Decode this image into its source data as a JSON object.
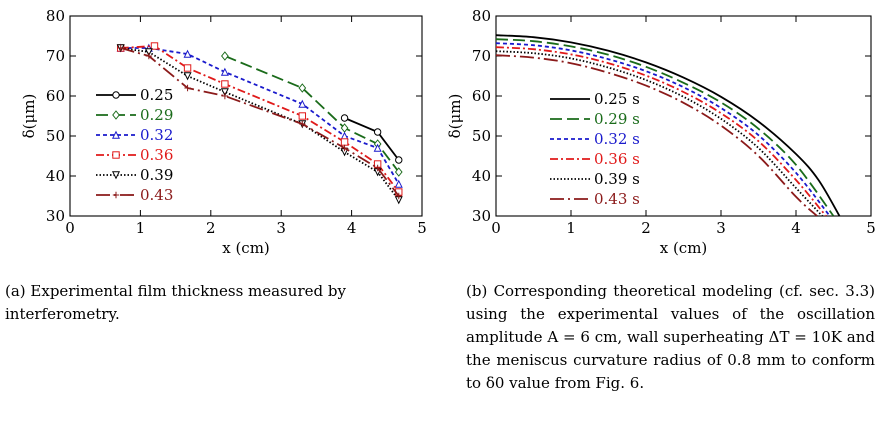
{
  "panel_a": {
    "caption": "(a) Experimental film thickness measured by interferometry.",
    "legend_labels": [
      "0.25",
      "0.29",
      "0.32",
      "0.36",
      "0.39",
      "0.43"
    ]
  },
  "panel_b": {
    "caption": "(b) Corresponding theoretical modeling (cf. sec. 3.3) using the experimental values of the oscillation amplitude A = 6 cm, wall superheating ΔT = 10K and the meniscus curvature radius of 0.8 mm to conform to δ0 value from Fig. 6.",
    "legend_labels": [
      "0.25 s",
      "0.29 s",
      "0.32 s",
      "0.36 s",
      "0.39 s",
      "0.43 s"
    ]
  },
  "colors": {
    "s025": "#000000",
    "s029": "#1a6b1a",
    "s032": "#1a1acc",
    "s036": "#e01a1a",
    "s039": "#000000",
    "s043": "#8b1a1a"
  },
  "chart_data": [
    {
      "type": "line",
      "xlabel": "x (cm)",
      "ylabel": "δ(μm)",
      "xlim": [
        0,
        5
      ],
      "ylim": [
        30,
        80
      ],
      "xticks": [
        "0",
        "1",
        "2",
        "3",
        "4",
        "5"
      ],
      "yticks": [
        "30",
        "40",
        "50",
        "60",
        "70",
        "80"
      ],
      "grid": false,
      "legend_position": "left",
      "series": [
        {
          "name": "0.25",
          "marker": "circle",
          "dash": "solid",
          "color_key": "s025",
          "x": [
            3.9,
            4.37,
            4.67
          ],
          "y": [
            54.5,
            51,
            44
          ]
        },
        {
          "name": "0.29",
          "marker": "diamond",
          "dash": "longdash",
          "color_key": "s029",
          "x": [
            2.2,
            3.3,
            3.9,
            4.37,
            4.67
          ],
          "y": [
            70,
            62,
            52,
            48,
            41
          ]
        },
        {
          "name": "0.32",
          "marker": "triangle",
          "dash": "shortdash",
          "color_key": "s032",
          "x": [
            0.72,
            1.12,
            1.67,
            2.2,
            3.3,
            3.9,
            4.37,
            4.67
          ],
          "y": [
            72,
            72,
            70.5,
            66,
            58,
            50,
            47,
            38
          ]
        },
        {
          "name": "0.36",
          "marker": "square",
          "dash": "dashdot",
          "color_key": "s036",
          "x": [
            0.72,
            1.2,
            1.67,
            2.2,
            3.3,
            3.9,
            4.37,
            4.67
          ],
          "y": [
            72,
            72.5,
            67,
            63,
            55,
            48.5,
            43,
            36
          ]
        },
        {
          "name": "0.39",
          "marker": "triangle-down",
          "dash": "dotted",
          "color_key": "s039",
          "x": [
            0.72,
            1.12,
            1.67,
            2.2,
            3.3,
            3.9,
            4.37,
            4.67
          ],
          "y": [
            72,
            71,
            65,
            61,
            53,
            46,
            41,
            34
          ]
        },
        {
          "name": "0.43",
          "marker": "cross",
          "dash": "dashdot-long",
          "color_key": "s043",
          "x": [
            0.72,
            1.12,
            1.67,
            2.2,
            3.3,
            3.9,
            4.37,
            4.67
          ],
          "y": [
            72,
            70,
            62,
            60,
            53,
            47,
            42,
            35
          ]
        }
      ]
    },
    {
      "type": "line",
      "xlabel": "x (cm)",
      "ylabel": "δ(μm)",
      "xlim": [
        0,
        5
      ],
      "ylim": [
        30,
        80
      ],
      "xticks": [
        "0",
        "1",
        "2",
        "3",
        "4",
        "5"
      ],
      "yticks": [
        "30",
        "40",
        "50",
        "60",
        "70",
        "80"
      ],
      "grid": false,
      "legend_position": "left",
      "series": [
        {
          "name": "0.25 s",
          "dash": "solid",
          "color_key": "s025",
          "x": [
            0,
            0.5,
            1,
            1.5,
            2,
            2.5,
            3,
            3.5,
            4,
            4.3,
            4.58
          ],
          "y": [
            75.2,
            74.7,
            73.4,
            71.3,
            68.4,
            64.6,
            59.8,
            53.6,
            45.5,
            39,
            30
          ]
        },
        {
          "name": "0.29 s",
          "dash": "longdash",
          "color_key": "s029",
          "x": [
            0,
            0.5,
            1,
            1.5,
            2,
            2.5,
            3,
            3.5,
            4,
            4.5
          ],
          "y": [
            74.2,
            73.7,
            72.4,
            70.3,
            67.3,
            63.3,
            58.4,
            51.8,
            42.8,
            30
          ]
        },
        {
          "name": "0.32 s",
          "dash": "shortdash",
          "color_key": "s032",
          "x": [
            0,
            0.5,
            1,
            1.5,
            2,
            2.5,
            3,
            3.5,
            4,
            4.45
          ],
          "y": [
            73.2,
            72.7,
            71.4,
            69.2,
            66.2,
            62.2,
            57,
            50.2,
            40.8,
            30
          ]
        },
        {
          "name": "0.36 s",
          "dash": "dashdot",
          "color_key": "s036",
          "x": [
            0,
            0.5,
            1,
            1.5,
            2,
            2.5,
            3,
            3.5,
            4,
            4.4
          ],
          "y": [
            72.2,
            71.7,
            70.4,
            68.2,
            65.1,
            61,
            55.7,
            48.7,
            39,
            30
          ]
        },
        {
          "name": "0.39 s",
          "dash": "dotted",
          "color_key": "s039",
          "x": [
            0,
            0.5,
            1,
            1.5,
            2,
            2.5,
            3,
            3.5,
            4,
            4.35
          ],
          "y": [
            71.2,
            70.7,
            69.4,
            67.1,
            64,
            59.8,
            54.3,
            47,
            37,
            30
          ]
        },
        {
          "name": "0.43 s",
          "dash": "dashdot-long",
          "color_key": "s043",
          "x": [
            0,
            0.5,
            1,
            1.5,
            2,
            2.5,
            3,
            3.5,
            4,
            4.28
          ],
          "y": [
            70.2,
            69.6,
            68.2,
            65.8,
            62.6,
            58.3,
            52.6,
            45,
            34.8,
            30
          ]
        }
      ]
    }
  ]
}
